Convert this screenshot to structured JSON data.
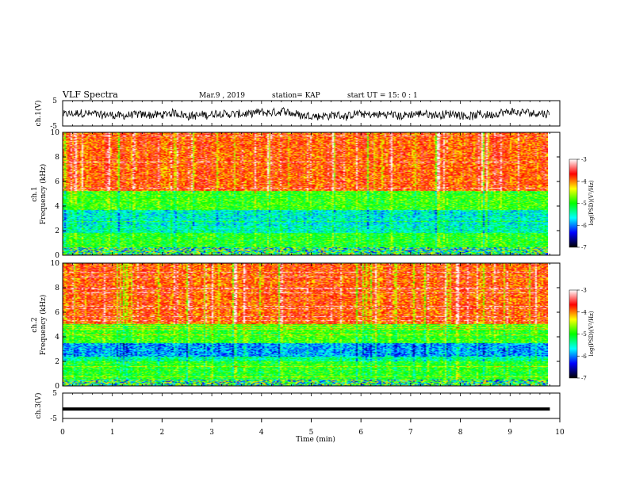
{
  "header": {
    "title": "VLF Spectra",
    "date": "Mar.9 , 2019",
    "station": "station= KAP",
    "start": "start UT = 15: 0 : 1"
  },
  "chart_data": [
    {
      "type": "line",
      "ylabel": "ch.1(V)",
      "ylim": [
        -5,
        5
      ],
      "yticks": [
        "5",
        "-5"
      ],
      "xlim": [
        0,
        10
      ],
      "description_values": "noisy trace around -0.5 V"
    },
    {
      "type": "heatmap",
      "ylabel_top": "ch.1",
      "ylabel": "Frequency (kHz)",
      "ylim": [
        0,
        10
      ],
      "yticks": [
        "0",
        "2",
        "4",
        "6",
        "8",
        "10"
      ],
      "xlim": [
        0,
        10
      ],
      "colorbar": {
        "label": "log(PSD)(V²/Hz)",
        "ticks": [
          "-3",
          "-4",
          "-5",
          "-6",
          "-7"
        ],
        "colors": [
          "#ffffff",
          "#ff0000",
          "#ffff00",
          "#00ff00",
          "#00ffff",
          "#0000ff",
          "#000000"
        ]
      },
      "bands": [
        {
          "range": [
            0,
            0.6
          ],
          "level": "mixed"
        },
        {
          "range": [
            0.6,
            1.8
          ],
          "level": -5.0
        },
        {
          "range": [
            1.8,
            2.4
          ],
          "level": -5.5
        },
        {
          "range": [
            2.4,
            3.7
          ],
          "level": -5.6
        },
        {
          "range": [
            3.7,
            5.2
          ],
          "level": -4.9
        },
        {
          "range": [
            5.2,
            10
          ],
          "level": -3.8
        }
      ]
    },
    {
      "type": "heatmap",
      "ylabel_top": "ch.2",
      "ylabel": "Frequency (kHz)",
      "ylim": [
        0,
        10
      ],
      "yticks": [
        "0",
        "2",
        "4",
        "6",
        "8",
        "10"
      ],
      "xlim": [
        0,
        10
      ],
      "colorbar": {
        "label": "log(PSD)(V²/Hz)",
        "ticks": [
          "-3",
          "-4",
          "-5",
          "-6",
          "-7"
        ],
        "colors": [
          "#ffffff",
          "#ff0000",
          "#ffff00",
          "#00ff00",
          "#00ffff",
          "#0000ff",
          "#000000"
        ]
      },
      "bands": [
        {
          "range": [
            0,
            0.5
          ],
          "level": "mixed"
        },
        {
          "range": [
            0.5,
            1.9
          ],
          "level": -5.0
        },
        {
          "range": [
            1.9,
            2.4
          ],
          "level": -5.4
        },
        {
          "range": [
            2.4,
            3.5
          ],
          "level": -5.9
        },
        {
          "range": [
            3.5,
            5.0
          ],
          "level": -4.9
        },
        {
          "range": [
            5.0,
            10
          ],
          "level": -3.8
        }
      ]
    },
    {
      "type": "line",
      "ylabel": "ch.3(V)",
      "ylim": [
        -5,
        5
      ],
      "yticks": [
        "5",
        "-5"
      ],
      "xlim": [
        0,
        10
      ],
      "xlabel": "Time (min)",
      "xticks": [
        "0",
        "1",
        "2",
        "3",
        "4",
        "5",
        "6",
        "7",
        "8",
        "9",
        "10"
      ],
      "series": [
        {
          "x": [
            0,
            9.8
          ],
          "y": [
            -1.3,
            -1.3
          ]
        }
      ]
    }
  ]
}
